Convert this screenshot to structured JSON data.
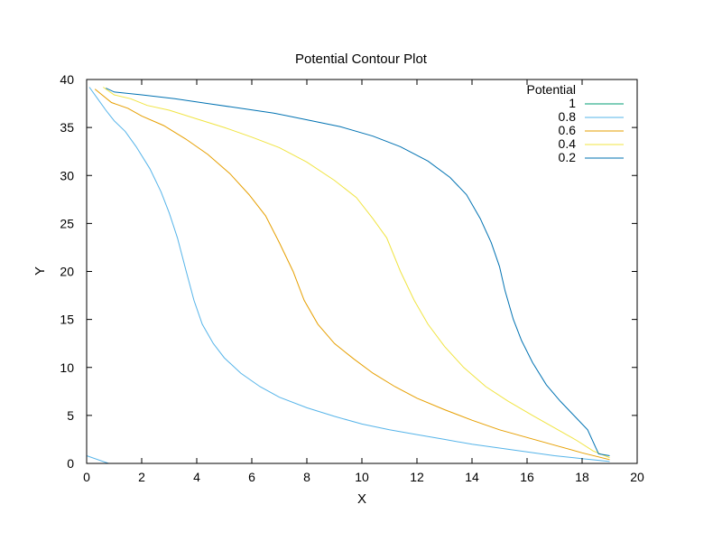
{
  "chart_data": {
    "type": "line",
    "title": "Potential Contour Plot",
    "xlabel": "X",
    "ylabel": "Y",
    "xlim": [
      0,
      20
    ],
    "ylim": [
      0,
      40
    ],
    "xticks": [
      0,
      2,
      4,
      6,
      8,
      10,
      12,
      14,
      16,
      18,
      20
    ],
    "yticks": [
      0,
      5,
      10,
      15,
      20,
      25,
      30,
      35,
      40
    ],
    "grid": false,
    "legend": {
      "title": "Potential",
      "placement": "top-right"
    },
    "series": [
      {
        "name": "1",
        "color": "#009e73",
        "points": []
      },
      {
        "name": "0.8",
        "color": "#56b4e9",
        "points": [
          [
            0,
            0.8
          ],
          [
            0.8,
            0
          ],
          [
            0.1,
            39.2
          ],
          [
            0.4,
            38.0
          ],
          [
            0.7,
            36.8
          ],
          [
            1.0,
            35.7
          ],
          [
            1.4,
            34.6
          ],
          [
            1.8,
            33.0
          ],
          [
            2.3,
            30.7
          ],
          [
            2.7,
            28.3
          ],
          [
            3.0,
            26.1
          ],
          [
            3.3,
            23.5
          ],
          [
            3.6,
            20.2
          ],
          [
            3.9,
            17.0
          ],
          [
            4.2,
            14.5
          ],
          [
            4.6,
            12.5
          ],
          [
            5.0,
            11.0
          ],
          [
            5.6,
            9.4
          ],
          [
            6.3,
            8.0
          ],
          [
            7.0,
            6.9
          ],
          [
            8.0,
            5.8
          ],
          [
            9.0,
            4.9
          ],
          [
            10.0,
            4.1
          ],
          [
            11.0,
            3.5
          ],
          [
            12.0,
            3.0
          ],
          [
            13.0,
            2.5
          ],
          [
            14.0,
            2.0
          ],
          [
            15.0,
            1.6
          ],
          [
            16.0,
            1.2
          ],
          [
            17.0,
            0.8
          ],
          [
            18.0,
            0.5
          ],
          [
            19.0,
            0.2
          ]
        ]
      },
      {
        "name": "0.6",
        "color": "#e69f00",
        "points": [
          [
            0.3,
            39.0
          ],
          [
            0.9,
            37.6
          ],
          [
            1.5,
            37.0
          ],
          [
            2.0,
            36.2
          ],
          [
            2.8,
            35.2
          ],
          [
            3.6,
            33.8
          ],
          [
            4.4,
            32.2
          ],
          [
            5.2,
            30.2
          ],
          [
            5.9,
            28.0
          ],
          [
            6.5,
            25.8
          ],
          [
            7.0,
            23.0
          ],
          [
            7.5,
            20.0
          ],
          [
            7.9,
            17.0
          ],
          [
            8.4,
            14.5
          ],
          [
            9.0,
            12.5
          ],
          [
            9.7,
            10.9
          ],
          [
            10.4,
            9.4
          ],
          [
            11.2,
            8.0
          ],
          [
            12.0,
            6.8
          ],
          [
            13.0,
            5.6
          ],
          [
            14.0,
            4.5
          ],
          [
            15.0,
            3.5
          ],
          [
            16.0,
            2.7
          ],
          [
            17.0,
            1.9
          ],
          [
            18.0,
            1.1
          ],
          [
            19.0,
            0.4
          ]
        ]
      },
      {
        "name": "0.4",
        "color": "#f0e442",
        "points": [
          [
            0.6,
            39.2
          ],
          [
            1.0,
            38.4
          ],
          [
            1.6,
            38.0
          ],
          [
            2.2,
            37.3
          ],
          [
            3.0,
            36.8
          ],
          [
            4.0,
            35.9
          ],
          [
            5.0,
            35.0
          ],
          [
            6.0,
            34.0
          ],
          [
            7.0,
            32.9
          ],
          [
            8.0,
            31.4
          ],
          [
            9.0,
            29.5
          ],
          [
            9.8,
            27.7
          ],
          [
            10.4,
            25.5
          ],
          [
            10.9,
            23.5
          ],
          [
            11.4,
            20.0
          ],
          [
            11.9,
            17.0
          ],
          [
            12.4,
            14.5
          ],
          [
            13.0,
            12.2
          ],
          [
            13.7,
            10.0
          ],
          [
            14.5,
            8.0
          ],
          [
            15.3,
            6.5
          ],
          [
            16.2,
            5.0
          ],
          [
            17.0,
            3.7
          ],
          [
            17.8,
            2.4
          ],
          [
            18.4,
            1.3
          ],
          [
            19.0,
            0.6
          ]
        ]
      },
      {
        "name": "0.2",
        "color": "#0072b2",
        "points": [
          [
            0.7,
            39.1
          ],
          [
            1.0,
            38.7
          ],
          [
            2.0,
            38.4
          ],
          [
            3.2,
            38.0
          ],
          [
            4.4,
            37.5
          ],
          [
            5.6,
            37.0
          ],
          [
            6.8,
            36.5
          ],
          [
            8.0,
            35.8
          ],
          [
            9.2,
            35.1
          ],
          [
            10.4,
            34.1
          ],
          [
            11.4,
            33.0
          ],
          [
            12.4,
            31.5
          ],
          [
            13.2,
            29.8
          ],
          [
            13.8,
            28.0
          ],
          [
            14.3,
            25.5
          ],
          [
            14.7,
            23.0
          ],
          [
            15.0,
            20.5
          ],
          [
            15.2,
            18.0
          ],
          [
            15.5,
            15.0
          ],
          [
            15.8,
            12.8
          ],
          [
            16.2,
            10.5
          ],
          [
            16.7,
            8.2
          ],
          [
            17.2,
            6.5
          ],
          [
            17.7,
            5.0
          ],
          [
            18.2,
            3.5
          ],
          [
            18.6,
            1.0
          ],
          [
            19.0,
            0.8
          ]
        ]
      }
    ]
  }
}
